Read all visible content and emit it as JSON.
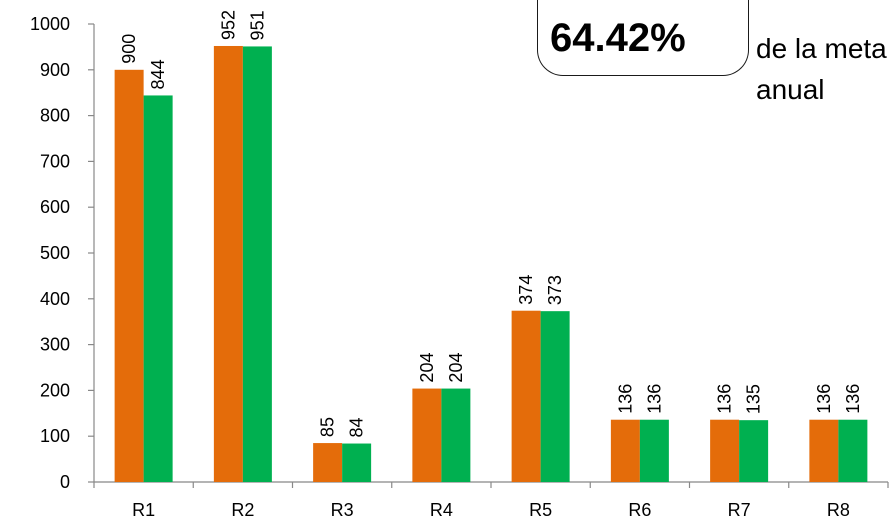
{
  "chart_data": {
    "type": "bar",
    "categories": [
      "R1",
      "R2",
      "R3",
      "R4",
      "R5",
      "R6",
      "R7",
      "R8"
    ],
    "series": [
      {
        "values": [
          900,
          952,
          85,
          204,
          374,
          136,
          136,
          136
        ],
        "color": "#E46C0A"
      },
      {
        "values": [
          844,
          951,
          84,
          204,
          373,
          136,
          135,
          136
        ],
        "color": "#00B050"
      }
    ],
    "ylim": [
      0,
      1000
    ],
    "yticks": [
      0,
      100,
      200,
      300,
      400,
      500,
      600,
      700,
      800,
      900,
      1000
    ],
    "grid": false,
    "legend": "none"
  },
  "callout": {
    "value": "64.42%",
    "text_line1": "de la meta",
    "text_line2": "anual"
  }
}
